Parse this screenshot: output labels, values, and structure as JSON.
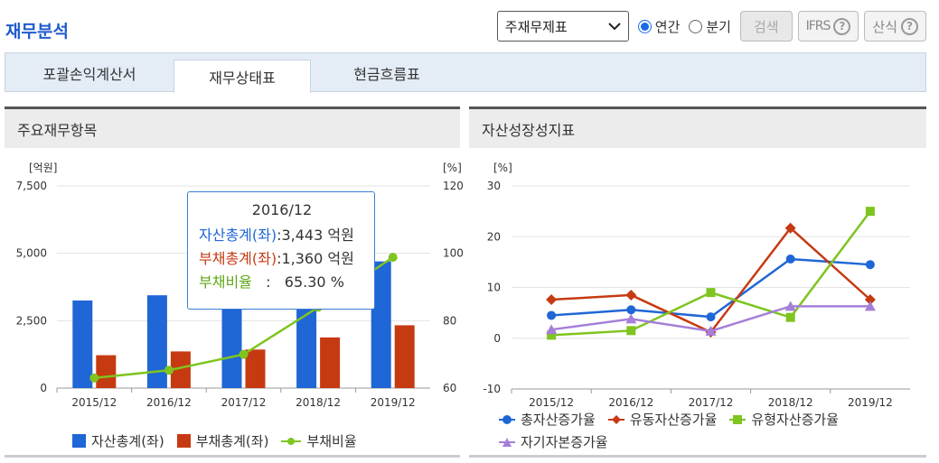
{
  "page_title": "재무분석",
  "controls": {
    "statement_select": "주재무제표",
    "period_options": [
      {
        "label": "연간",
        "selected": true
      },
      {
        "label": "분기",
        "selected": false
      }
    ],
    "search_label": "검색",
    "ifrs_label": "IFRS",
    "formula_label": "산식"
  },
  "tabs": [
    {
      "label": "포괄손익계산서",
      "active": false
    },
    {
      "label": "재무상태표",
      "active": true
    },
    {
      "label": "현금흐름표",
      "active": false
    }
  ],
  "left_panel": {
    "title": "주요재무항목",
    "left_unit": "[억원]",
    "right_unit": "[%]",
    "tooltip": {
      "title": "2016/12",
      "rows": [
        {
          "label": "자산총계(좌)",
          "value": ":3,443 억원",
          "color": "#1f66d6"
        },
        {
          "label": "부채총계(좌)",
          "value": ":1,360 억원",
          "color": "#c63a12"
        },
        {
          "label": "부채비율",
          "value": "   :   65.30 %",
          "color": "#5fa617"
        }
      ]
    }
  },
  "right_panel": {
    "title": "자산성장성지표",
    "unit": "[%]"
  },
  "chart_data": [
    {
      "type": "bar",
      "categories": [
        "2015/12",
        "2016/12",
        "2017/12",
        "2018/12",
        "2019/12"
      ],
      "series": [
        {
          "name": "자산총계(좌)",
          "color": "#1f66d6",
          "axis": "left",
          "values": [
            3250,
            3443,
            3550,
            4100,
            4700
          ]
        },
        {
          "name": "부채총계(좌)",
          "color": "#c63a12",
          "axis": "left",
          "values": [
            1220,
            1360,
            1430,
            1880,
            2330
          ]
        },
        {
          "name": "부채비율",
          "color": "#7fc41f",
          "axis": "right",
          "kind": "line",
          "values": [
            63.0,
            65.3,
            70.0,
            84.0,
            98.8
          ]
        }
      ],
      "left_ylim": [
        0,
        7500
      ],
      "left_ticks": [
        "0",
        "2,500",
        "5,000",
        "7,500"
      ],
      "right_ylim": [
        60,
        120
      ],
      "right_ticks": [
        "60",
        "80",
        "100",
        "120"
      ]
    },
    {
      "type": "line",
      "categories": [
        "2015/12",
        "2016/12",
        "2017/12",
        "2018/12",
        "2019/12"
      ],
      "series": [
        {
          "name": "총자산증가율",
          "color": "#1f66d6",
          "marker": "circle",
          "values": [
            4.5,
            5.6,
            4.2,
            15.6,
            14.5
          ]
        },
        {
          "name": "유동자산증가율",
          "color": "#c63a12",
          "marker": "diamond",
          "values": [
            7.6,
            8.5,
            1.2,
            21.7,
            7.6
          ]
        },
        {
          "name": "유형자산증가율",
          "color": "#7fc41f",
          "marker": "square",
          "values": [
            0.6,
            1.5,
            9.0,
            4.1,
            25.0
          ]
        },
        {
          "name": "자기자본증가율",
          "color": "#a57fd9",
          "marker": "triangle",
          "values": [
            1.7,
            3.8,
            1.4,
            6.3,
            6.3
          ]
        }
      ],
      "ylim": [
        -10,
        30
      ],
      "yticks": [
        "-10",
        "0",
        "10",
        "20",
        "30"
      ]
    }
  ]
}
